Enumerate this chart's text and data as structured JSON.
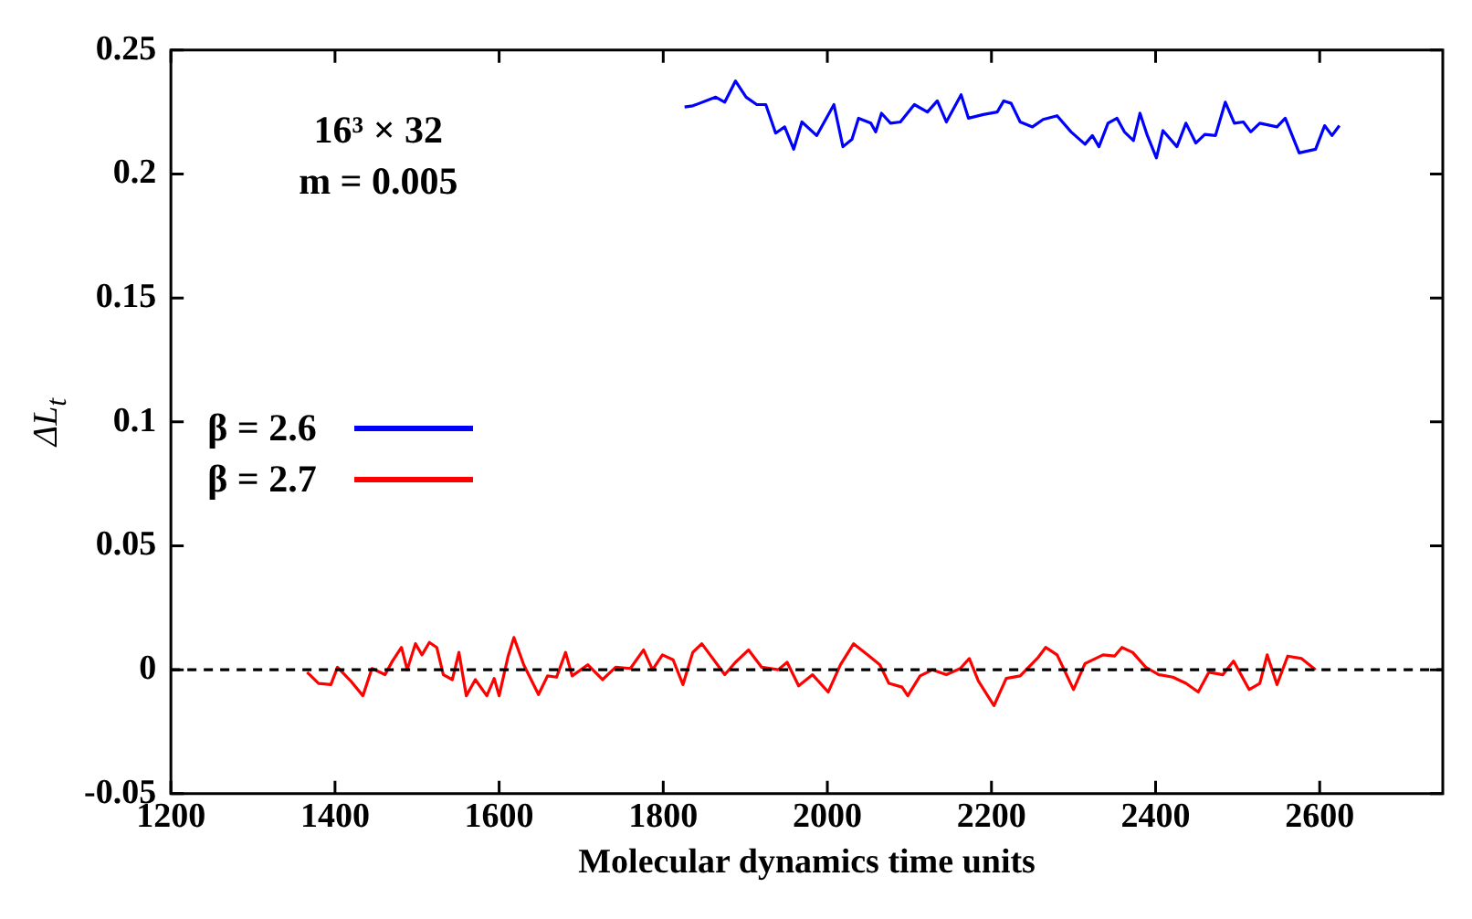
{
  "chart_data": {
    "type": "line",
    "xlabel": "Molecular dynamics time units",
    "ylabel": "ΔL$_{t}$",
    "annotations": [
      "16³ × 32",
      "m = 0.005"
    ],
    "xlim": [
      1200,
      2750
    ],
    "xticks": [
      1200,
      1400,
      1600,
      1800,
      2000,
      2200,
      2400,
      2600
    ],
    "ylim": [
      -0.05,
      0.25
    ],
    "yticks": [
      -0.05,
      0,
      0.05,
      0.1,
      0.15,
      0.2,
      0.25
    ],
    "grid": false,
    "legend": "left",
    "marker": "none",
    "line_style": "solid",
    "ref_lines": [
      {
        "axis": "y",
        "value": 0,
        "color": "#000000",
        "line_style": "dashed"
      }
    ],
    "series": [
      {
        "name": "β = 2.6",
        "color": "#0000ff",
        "x": [
          1826,
          1836,
          1864,
          1875,
          1888,
          1901,
          1914,
          1925,
          1937,
          1948,
          1959,
          1969,
          1987,
          2008,
          2019,
          2030,
          2038,
          2053,
          2059,
          2066,
          2077,
          2089,
          2106,
          2122,
          2134,
          2145,
          2163,
          2172,
          2190,
          2207,
          2215,
          2224,
          2235,
          2250,
          2263,
          2280,
          2297,
          2314,
          2323,
          2331,
          2342,
          2353,
          2362,
          2373,
          2381,
          2390,
          2401,
          2409,
          2426,
          2437,
          2449,
          2460,
          2473,
          2485,
          2496,
          2507,
          2516,
          2527,
          2548,
          2558,
          2575,
          2595,
          2606,
          2615,
          2624
        ],
        "values": [
          0.227,
          0.2275,
          0.231,
          0.229,
          0.2375,
          0.231,
          0.228,
          0.228,
          0.2165,
          0.219,
          0.21,
          0.221,
          0.2155,
          0.228,
          0.211,
          0.214,
          0.2225,
          0.2205,
          0.217,
          0.2245,
          0.2205,
          0.221,
          0.228,
          0.225,
          0.2295,
          0.221,
          0.232,
          0.2225,
          0.224,
          0.225,
          0.2295,
          0.2285,
          0.221,
          0.219,
          0.222,
          0.2235,
          0.217,
          0.212,
          0.2155,
          0.211,
          0.2205,
          0.2225,
          0.217,
          0.2135,
          0.2245,
          0.2155,
          0.2065,
          0.2175,
          0.211,
          0.2205,
          0.2125,
          0.216,
          0.2155,
          0.229,
          0.2205,
          0.221,
          0.217,
          0.2205,
          0.219,
          0.2225,
          0.2085,
          0.21,
          0.2195,
          0.2155,
          0.2195
        ]
      },
      {
        "name": "β = 2.7",
        "color": "#ff0000",
        "x": [
          1366,
          1380,
          1395,
          1403,
          1419,
          1434,
          1445,
          1461,
          1470,
          1481,
          1488,
          1498,
          1506,
          1515,
          1524,
          1532,
          1543,
          1551,
          1560,
          1571,
          1585,
          1594,
          1600,
          1611,
          1618,
          1630,
          1648,
          1659,
          1670,
          1681,
          1689,
          1708,
          1726,
          1742,
          1760,
          1776,
          1787,
          1799,
          1812,
          1824,
          1836,
          1847,
          1875,
          1888,
          1904,
          1920,
          1940,
          1951,
          1965,
          1982,
          2001,
          2016,
          2032,
          2049,
          2064,
          2075,
          2091,
          2098,
          2113,
          2128,
          2145,
          2162,
          2173,
          2184,
          2203,
          2218,
          2235,
          2257,
          2266,
          2280,
          2300,
          2314,
          2336,
          2350,
          2359,
          2372,
          2388,
          2404,
          2421,
          2437,
          2452,
          2465,
          2482,
          2495,
          2514,
          2527,
          2536,
          2548,
          2561,
          2578,
          2595
        ],
        "values": [
          -0.001,
          -0.0055,
          -0.006,
          0.001,
          -0.0045,
          -0.0105,
          0.0005,
          -0.002,
          0.0035,
          0.009,
          0.0,
          0.0105,
          0.006,
          0.011,
          0.009,
          -0.002,
          -0.004,
          0.007,
          -0.0105,
          -0.004,
          -0.0105,
          -0.0035,
          -0.0105,
          0.0055,
          0.013,
          0.002,
          -0.01,
          -0.0025,
          -0.003,
          0.007,
          -0.0025,
          0.002,
          -0.004,
          0.001,
          0.0005,
          0.008,
          0.0,
          0.006,
          0.004,
          -0.006,
          0.007,
          0.0105,
          -0.002,
          0.003,
          0.008,
          0.001,
          0.0,
          0.003,
          -0.0065,
          -0.002,
          -0.009,
          0.002,
          0.0105,
          0.006,
          0.002,
          -0.0055,
          -0.007,
          -0.0105,
          -0.0025,
          0.0,
          -0.002,
          0.0005,
          0.0045,
          -0.0045,
          -0.0145,
          -0.0035,
          -0.0025,
          0.005,
          0.009,
          0.006,
          -0.008,
          0.0025,
          0.006,
          0.0055,
          0.009,
          0.007,
          0.001,
          -0.002,
          -0.003,
          -0.0055,
          -0.009,
          -0.001,
          -0.002,
          0.0035,
          -0.008,
          -0.0055,
          0.006,
          -0.006,
          0.0055,
          0.0045,
          0.0
        ]
      }
    ]
  }
}
